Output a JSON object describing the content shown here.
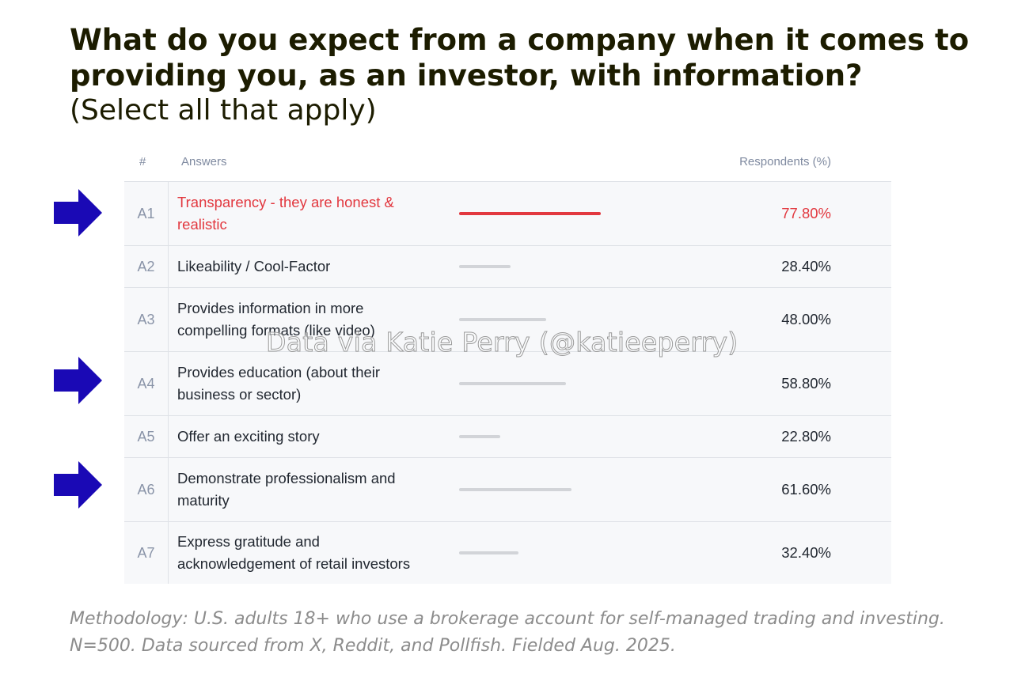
{
  "title": {
    "line1": "What do you expect from a company when it comes to",
    "line2": "providing you, as an investor, with information?",
    "subtitle": "(Select all that apply)"
  },
  "table": {
    "col_num": "#",
    "col_answers": "Answers",
    "col_respondents": "Respondents (%)"
  },
  "chart_data": {
    "type": "bar",
    "categories": [
      "A1",
      "A2",
      "A3",
      "A4",
      "A5",
      "A6",
      "A7"
    ],
    "labels": [
      "Transparency - they are honest & realistic",
      "Likeability / Cool-Factor",
      "Provides information in more compelling formats (like video)",
      "Provides education (about their business or sector)",
      "Offer an exciting story",
      "Demonstrate professionalism and maturity",
      "Express gratitude and acknowledgement of retail investors"
    ],
    "values": [
      77.8,
      28.4,
      48.0,
      58.8,
      22.8,
      61.6,
      32.4
    ],
    "value_labels": [
      "77.80%",
      "28.40%",
      "48.00%",
      "58.80%",
      "22.80%",
      "61.60%",
      "32.40%"
    ],
    "highlighted": [
      "A1"
    ],
    "arrow_marked": [
      "A1",
      "A4",
      "A6"
    ],
    "highlight_color": "#e2383f",
    "bar_color": "#d2d4d8",
    "arrow_color": "#1a09b5"
  },
  "watermark": "Data  via Katie Perry (@katieeperry)",
  "footnote": {
    "line1": "Methodology: U.S. adults 18+ who use a brokerage account for self-managed trading and investing.",
    "line2": "N=500. Data sourced from X, Reddit, and Pollfish. Fielded Aug. 2025."
  }
}
